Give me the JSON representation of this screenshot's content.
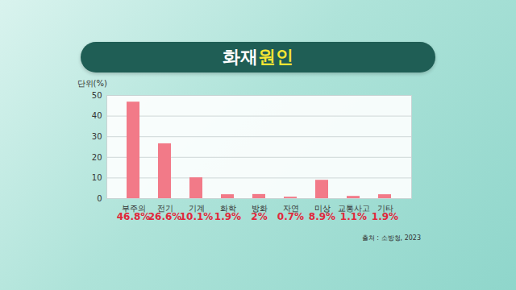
{
  "chart_data": {
    "type": "bar",
    "title": "화재 원인",
    "categories": [
      "부주의",
      "전기",
      "기계",
      "화학",
      "방화",
      "자연",
      "미상",
      "교통사고",
      "기타"
    ],
    "values": [
      46.8,
      26.6,
      10.1,
      1.9,
      2,
      0.7,
      8.9,
      1.1,
      1.9
    ],
    "value_labels": [
      "46.8%",
      "26.6%",
      "10.1%",
      "1.9%",
      "2%",
      "0.7%",
      "8.9%",
      "1.1%",
      "1.9%"
    ],
    "data_labels": true,
    "y_label": "단위(%)",
    "caption": "출처 : 소방청, 2023",
    "color": "#f27a88",
    "ylim": [
      0,
      50
    ],
    "yticks": [
      0,
      10,
      20,
      30,
      40,
      50
    ],
    "grid": true
  }
}
